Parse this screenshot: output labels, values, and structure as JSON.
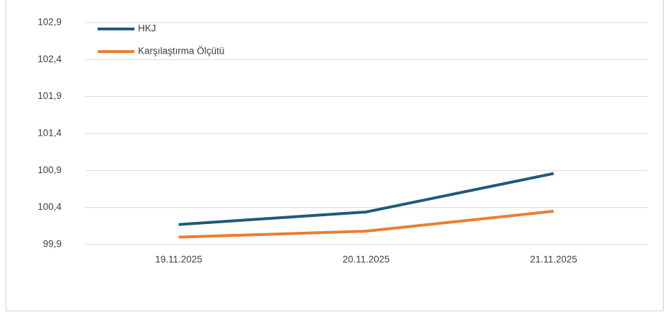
{
  "chart_data": {
    "type": "line",
    "categories": [
      "19.11.2025",
      "20.11.2025",
      "21.11.2025"
    ],
    "series": [
      {
        "name": "HKJ",
        "color": "#1e5a79",
        "values": [
          100.17,
          100.34,
          100.86
        ]
      },
      {
        "name": "Karşılaştırma Ölçütü",
        "color": "#ed7d31",
        "values": [
          100.0,
          100.08,
          100.35
        ]
      }
    ],
    "ylim": [
      99.9,
      102.9
    ],
    "yticks": [
      {
        "value": 99.9,
        "label": "99,9"
      },
      {
        "value": 100.4,
        "label": "100,4"
      },
      {
        "value": 100.9,
        "label": "100,9"
      },
      {
        "value": 101.4,
        "label": "101,4"
      },
      {
        "value": 101.9,
        "label": "101,9"
      },
      {
        "value": 102.4,
        "label": "102,4"
      },
      {
        "value": 102.9,
        "label": "102,9"
      }
    ],
    "grid": true,
    "legend": "top-left"
  }
}
